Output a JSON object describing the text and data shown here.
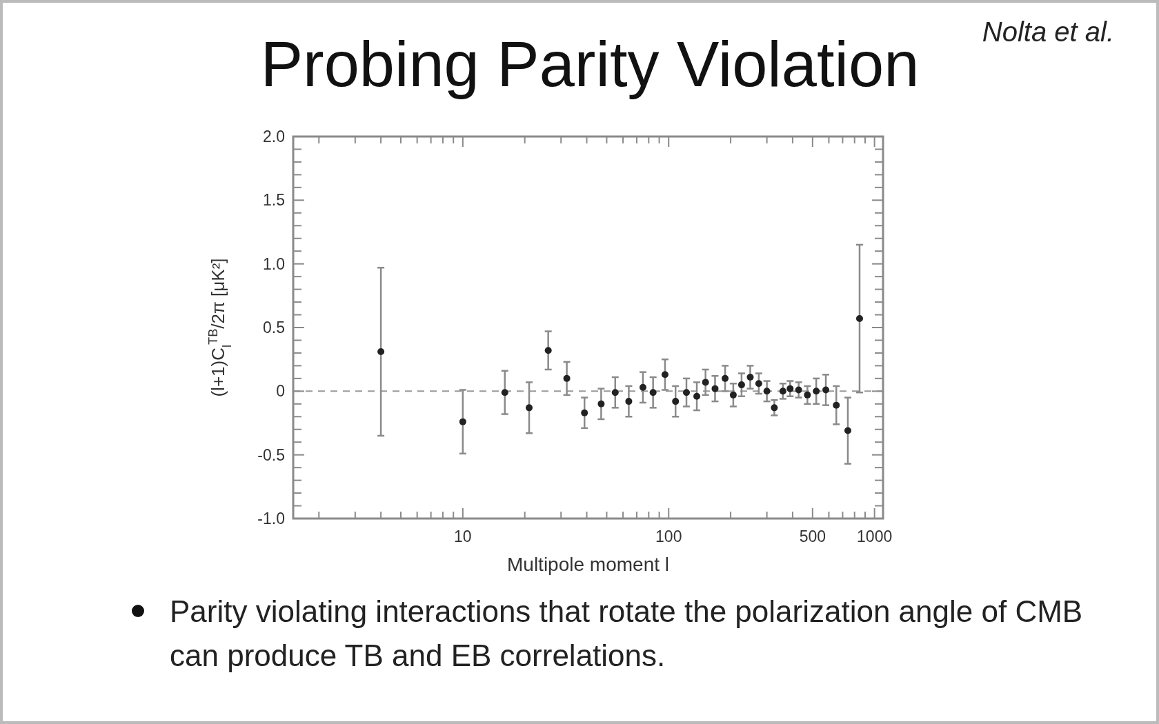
{
  "chart_data": {
    "type": "scatter",
    "title": "Probing Parity Violation",
    "xlabel": "Multipole moment  l",
    "ylabel": "(l+1)C$_{l}$$^{TB}$/2π [μK²]",
    "annotations": [
      "Nolta et al.",
      "Parity violating interactions that rotate the polarization angle of CMB can produce TB and EB correlations."
    ],
    "x": [
      4,
      10,
      16,
      21,
      26,
      32,
      39,
      47,
      55,
      64,
      75,
      84,
      96,
      108,
      122,
      137,
      151,
      168,
      188,
      206,
      226,
      249,
      274,
      300,
      326,
      359,
      389,
      428,
      472,
      521,
      580,
      652,
      742,
      846
    ],
    "series": [
      {
        "color": "#222222",
        "values": [
          0.31,
          -0.24,
          -0.01,
          -0.13,
          0.32,
          0.1,
          -0.17,
          -0.1,
          -0.01,
          -0.08,
          0.03,
          -0.01,
          0.13,
          -0.08,
          -0.01,
          -0.04,
          0.07,
          0.02,
          0.1,
          -0.03,
          0.05,
          0.11,
          0.06,
          0,
          -0.13,
          0,
          0.02,
          0.01,
          -0.03,
          0,
          0.01,
          -0.11,
          -0.31,
          0.57
        ],
        "errors": [
          0.66,
          0.25,
          0.17,
          0.2,
          0.15,
          0.13,
          0.12,
          0.12,
          0.12,
          0.12,
          0.12,
          0.12,
          0.12,
          0.12,
          0.11,
          0.11,
          0.1,
          0.1,
          0.1,
          0.09,
          0.09,
          0.09,
          0.08,
          0.08,
          0.06,
          0.06,
          0.06,
          0.06,
          0.07,
          0.1,
          0.12,
          0.15,
          0.26,
          0.58
        ]
      }
    ],
    "marker": "circle",
    "log": "x",
    "xlim": [
      1.5,
      1100
    ],
    "xticks": [
      {
        "value": 2,
        "label": null
      },
      {
        "value": 3,
        "label": null
      },
      {
        "value": 4,
        "label": null
      },
      {
        "value": 5,
        "label": null
      },
      {
        "value": 6,
        "label": null
      },
      {
        "value": 7,
        "label": null
      },
      {
        "value": 8,
        "label": null
      },
      {
        "value": 9,
        "label": null
      },
      10,
      {
        "value": 20,
        "label": null
      },
      {
        "value": 30,
        "label": null
      },
      {
        "value": 40,
        "label": null
      },
      {
        "value": 50,
        "label": null
      },
      {
        "value": 60,
        "label": null
      },
      {
        "value": 70,
        "label": null
      },
      {
        "value": 80,
        "label": null
      },
      {
        "value": 90,
        "label": null
      },
      100,
      {
        "value": 200,
        "label": null
      },
      {
        "value": 300,
        "label": null
      },
      {
        "value": 400,
        "label": null
      },
      500,
      {
        "value": 600,
        "label": null
      },
      {
        "value": 700,
        "label": null
      },
      {
        "value": 800,
        "label": null
      },
      {
        "value": 900,
        "label": null
      },
      1000
    ],
    "ylim": [
      -1.0,
      2.0
    ],
    "yticks": [
      {
        "value": -1.0,
        "label": "-1.0"
      },
      {
        "value": -0.9,
        "label": null
      },
      {
        "value": -0.8,
        "label": null
      },
      {
        "value": -0.7,
        "label": null
      },
      {
        "value": -0.6,
        "label": null
      },
      {
        "value": -0.5,
        "label": "-0.5"
      },
      {
        "value": -0.4,
        "label": null
      },
      {
        "value": -0.3,
        "label": null
      },
      {
        "value": -0.2,
        "label": null
      },
      {
        "value": -0.1,
        "label": null
      },
      0,
      {
        "value": 0.1,
        "label": null
      },
      {
        "value": 0.2,
        "label": null
      },
      {
        "value": 0.3,
        "label": null
      },
      {
        "value": 0.4,
        "label": null
      },
      {
        "value": 0.5,
        "label": "0.5"
      },
      {
        "value": 0.6,
        "label": null
      },
      {
        "value": 0.7,
        "label": null
      },
      {
        "value": 0.8,
        "label": null
      },
      {
        "value": 0.9,
        "label": null
      },
      {
        "value": 1.0,
        "label": "1.0"
      },
      {
        "value": 1.1,
        "label": null
      },
      {
        "value": 1.2,
        "label": null
      },
      {
        "value": 1.3,
        "label": null
      },
      {
        "value": 1.4,
        "label": null
      },
      {
        "value": 1.5,
        "label": "1.5"
      },
      {
        "value": 1.6,
        "label": null
      },
      {
        "value": 1.7,
        "label": null
      },
      {
        "value": 1.8,
        "label": null
      },
      {
        "value": 1.9,
        "label": null
      },
      {
        "value": 2.0,
        "label": "2.0"
      }
    ],
    "ref_lines": [
      {
        "axis": "y",
        "value": 0,
        "color": "#999999",
        "line_style": "dashed"
      }
    ]
  }
}
